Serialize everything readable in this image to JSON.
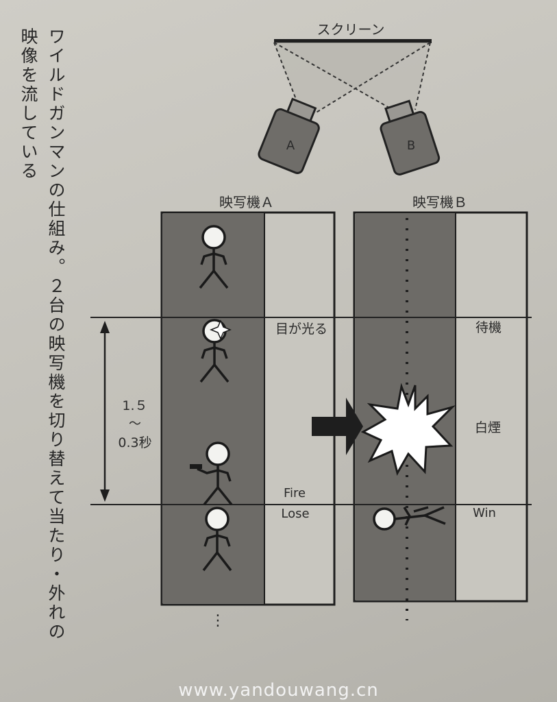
{
  "caption": {
    "col1": "ワイルドガンマンの仕組み。２台の映写機を切り替えて当たり・外れの",
    "col2": "映像を流している"
  },
  "diagram": {
    "screen_label": "スクリーン",
    "projector_a": "A",
    "projector_b": "B",
    "column_a_title": "映写機Ａ",
    "column_b_title": "映写機Ｂ",
    "timing": [
      "1.５",
      "～",
      "0.3秒"
    ],
    "labels_a": {
      "eyes_glow": "目が光る",
      "fire": "Fire",
      "lose": "Lose"
    },
    "labels_b": {
      "standby": "待機",
      "white_smoke": "白煙",
      "win": "Win"
    },
    "continuation_marks": [
      "⋮",
      "⋮"
    ]
  },
  "watermark": "www.yandouwang.cn"
}
